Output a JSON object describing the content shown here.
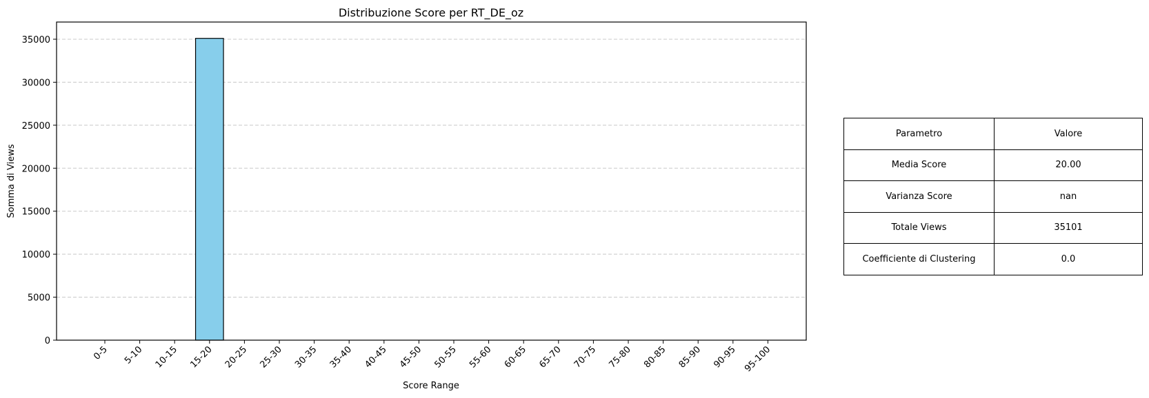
{
  "chart_data": {
    "type": "bar",
    "title": "Distribuzione Score per RT_DE_oz",
    "xlabel": "Score Range",
    "ylabel": "Somma di Views",
    "categories": [
      "0-5",
      "5-10",
      "10-15",
      "15-20",
      "20-25",
      "25-30",
      "30-35",
      "35-40",
      "40-45",
      "45-50",
      "50-55",
      "55-60",
      "60-65",
      "65-70",
      "70-75",
      "75-80",
      "80-85",
      "85-90",
      "90-95",
      "95-100"
    ],
    "values": [
      0,
      0,
      0,
      35101,
      0,
      0,
      0,
      0,
      0,
      0,
      0,
      0,
      0,
      0,
      0,
      0,
      0,
      0,
      0,
      0
    ],
    "ylim": [
      0,
      37000
    ],
    "yticks": [
      0,
      5000,
      10000,
      15000,
      20000,
      25000,
      30000,
      35000
    ],
    "grid": "y-dashed",
    "bar_color": "#87ceeb",
    "edge_color": "#000000",
    "grid_color": "#c8c8c8"
  },
  "table": {
    "header": [
      "Parametro",
      "Valore"
    ],
    "rows": [
      [
        "Media Score",
        "20.00"
      ],
      [
        "Varianza Score",
        "nan"
      ],
      [
        "Totale Views",
        "35101"
      ],
      [
        "Coefficiente di Clustering",
        "0.0"
      ]
    ]
  }
}
